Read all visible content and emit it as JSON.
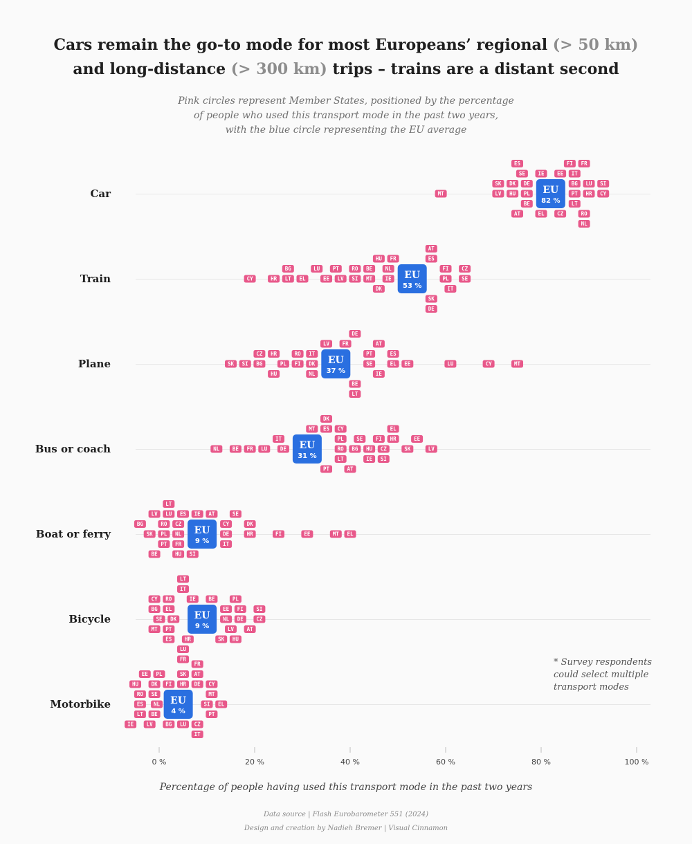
{
  "title": {
    "line1_pre": "Cars remain the go-to mode for most Europeans’ regional",
    "line1_hl": "(> 50 km)",
    "line2_pre": "and long-distance",
    "line2_hl": "(> 300 km)",
    "line2_post": "trips – trains are a distant second"
  },
  "subtitle": {
    "line1": "Pink circles represent Member States, positioned by the percentage",
    "line2": "of people who used this transport mode in the past two years,",
    "line3": "with the blue circle representing the EU average"
  },
  "footnote": {
    "line1": "* Survey respondents",
    "line2": "could select multiple",
    "line3": "transport modes"
  },
  "source": "Data source | Flash Eurobarometer 551 (2024)",
  "credit": "Design and creation by Nadieh Bremer | Visual Cinnamon",
  "colors": {
    "member_state": "#e8588a",
    "eu": "#2a6fe0",
    "gridline": "#e6e6e6"
  },
  "chart_data": {
    "type": "beeswarm",
    "xlabel": "Percentage of people having used this transport mode in the past two years",
    "xlim": [
      0,
      100
    ],
    "ticks": [
      0,
      20,
      40,
      60,
      80,
      100
    ],
    "tick_labels": [
      "0 %",
      "20 %",
      "40 %",
      "60 %",
      "80 %",
      "100 %"
    ],
    "eu_label": "EU",
    "rows": [
      {
        "mode": "Car",
        "eu": 82,
        "eu_label": "82 %",
        "members": [
          [
            "MT",
            59
          ],
          [
            "LV",
            71
          ],
          [
            "SK",
            71
          ],
          [
            "HU",
            74
          ],
          [
            "DK",
            74
          ],
          [
            "AT",
            75
          ],
          [
            "ES",
            75
          ],
          [
            "SE",
            76
          ],
          [
            "PL",
            77
          ],
          [
            "DE",
            77
          ],
          [
            "BE",
            77
          ],
          [
            "IE",
            80
          ],
          [
            "EL",
            80
          ],
          [
            "EE",
            84
          ],
          [
            "CZ",
            84
          ],
          [
            "FI",
            86
          ],
          [
            "PT",
            87
          ],
          [
            "BG",
            87
          ],
          [
            "LT",
            87
          ],
          [
            "IT",
            87
          ],
          [
            "RO",
            89
          ],
          [
            "FR",
            89
          ],
          [
            "NL",
            89
          ],
          [
            "HR",
            90
          ],
          [
            "LU",
            90
          ],
          [
            "CY",
            93
          ],
          [
            "SI",
            93
          ]
        ]
      },
      {
        "mode": "Train",
        "eu": 53,
        "eu_label": "53 %",
        "members": [
          [
            "CY",
            19
          ],
          [
            "HR",
            24
          ],
          [
            "LT",
            27
          ],
          [
            "BG",
            27
          ],
          [
            "EL",
            30
          ],
          [
            "LU",
            33
          ],
          [
            "EE",
            35
          ],
          [
            "LV",
            38
          ],
          [
            "PT",
            37
          ],
          [
            "SI",
            41
          ],
          [
            "RO",
            41
          ],
          [
            "MT",
            44
          ],
          [
            "BE",
            44
          ],
          [
            "DK",
            46
          ],
          [
            "HU",
            46
          ],
          [
            "IE",
            48
          ],
          [
            "NL",
            48
          ],
          [
            "FR",
            49
          ],
          [
            "ES",
            57
          ],
          [
            "SK",
            57
          ],
          [
            "AT",
            57
          ],
          [
            "DE",
            57
          ],
          [
            "PL",
            60
          ],
          [
            "FI",
            60
          ],
          [
            "IT",
            61
          ],
          [
            "SE",
            64
          ],
          [
            "CZ",
            64
          ]
        ]
      },
      {
        "mode": "Plane",
        "eu": 37,
        "eu_label": "37 %",
        "members": [
          [
            "SK",
            15
          ],
          [
            "SI",
            18
          ],
          [
            "BG",
            21
          ],
          [
            "CZ",
            21
          ],
          [
            "HR",
            24
          ],
          [
            "HU",
            24
          ],
          [
            "PL",
            26
          ],
          [
            "FI",
            29
          ],
          [
            "RO",
            29
          ],
          [
            "DK",
            32
          ],
          [
            "IT",
            32
          ],
          [
            "NL",
            32
          ],
          [
            "LV",
            35
          ],
          [
            "FR",
            39
          ],
          [
            "BE",
            41
          ],
          [
            "DE",
            41
          ],
          [
            "LT",
            41
          ],
          [
            "SE",
            44
          ],
          [
            "PT",
            44
          ],
          [
            "IE",
            46
          ],
          [
            "AT",
            46
          ],
          [
            "EL",
            49
          ],
          [
            "ES",
            49
          ],
          [
            "EE",
            52
          ],
          [
            "LU",
            61
          ],
          [
            "CY",
            69
          ],
          [
            "MT",
            75
          ]
        ]
      },
      {
        "mode": "Bus or coach",
        "eu": 31,
        "eu_label": "31 %",
        "members": [
          [
            "NL",
            12
          ],
          [
            "BE",
            16
          ],
          [
            "FR",
            19
          ],
          [
            "LU",
            22
          ],
          [
            "IT",
            25
          ],
          [
            "DE",
            26
          ],
          [
            "MT",
            32
          ],
          [
            "ES",
            35
          ],
          [
            "PT",
            35
          ],
          [
            "DK",
            35
          ],
          [
            "RO",
            38
          ],
          [
            "PL",
            38
          ],
          [
            "LT",
            38
          ],
          [
            "CY",
            38
          ],
          [
            "AT",
            40
          ],
          [
            "BG",
            41
          ],
          [
            "SE",
            42
          ],
          [
            "HU",
            44
          ],
          [
            "IE",
            44
          ],
          [
            "CZ",
            47
          ],
          [
            "FI",
            46
          ],
          [
            "SI",
            47
          ],
          [
            "HR",
            49
          ],
          [
            "EL",
            49
          ],
          [
            "SK",
            52
          ],
          [
            "EE",
            54
          ],
          [
            "LV",
            57
          ]
        ]
      },
      {
        "mode": "Boat or ferry",
        "eu": 9,
        "eu_label": "9 %",
        "members": [
          [
            "BG",
            -4
          ],
          [
            "LV",
            -1
          ],
          [
            "BE",
            -1
          ],
          [
            "SK",
            -2
          ],
          [
            "PL",
            1
          ],
          [
            "LU",
            2
          ],
          [
            "LT",
            2
          ],
          [
            "RO",
            1
          ],
          [
            "PT",
            1
          ],
          [
            "NL",
            4
          ],
          [
            "CZ",
            4
          ],
          [
            "ES",
            5
          ],
          [
            "FR",
            4
          ],
          [
            "HU",
            4
          ],
          [
            "IE",
            8
          ],
          [
            "SI",
            7
          ],
          [
            "AT",
            11
          ],
          [
            "DE",
            14
          ],
          [
            "CY",
            14
          ],
          [
            "IT",
            14
          ],
          [
            "SE",
            16
          ],
          [
            "HR",
            19
          ],
          [
            "DK",
            19
          ],
          [
            "FI",
            25
          ],
          [
            "EE",
            31
          ],
          [
            "MT",
            37
          ],
          [
            "EL",
            40
          ]
        ]
      },
      {
        "mode": "Bicycle",
        "eu": 9,
        "eu_label": "9 %",
        "members": [
          [
            "SE",
            0
          ],
          [
            "DK",
            3
          ],
          [
            "BG",
            -1
          ],
          [
            "EL",
            2
          ],
          [
            "MT",
            -1
          ],
          [
            "PT",
            2
          ],
          [
            "RO",
            2
          ],
          [
            "ES",
            2
          ],
          [
            "CY",
            -1
          ],
          [
            "HR",
            6
          ],
          [
            "IT",
            5
          ],
          [
            "LU",
            5
          ],
          [
            "LT",
            5
          ],
          [
            "FR",
            5
          ],
          [
            "IE",
            7
          ],
          [
            "SK",
            13
          ],
          [
            "PL",
            16
          ],
          [
            "NL",
            14
          ],
          [
            "DE",
            17
          ],
          [
            "HU",
            16
          ],
          [
            "EE",
            14
          ],
          [
            "BE",
            11
          ],
          [
            "LV",
            15
          ],
          [
            "AT",
            19
          ],
          [
            "FI",
            17
          ],
          [
            "CZ",
            21
          ],
          [
            "SI",
            21
          ]
        ]
      },
      {
        "mode": "Motorbike",
        "eu": 4,
        "eu_label": "4 %",
        "members": [
          [
            "EE",
            -3
          ],
          [
            "PL",
            0
          ],
          [
            "ES",
            -4
          ],
          [
            "NL",
            -0.5
          ],
          [
            "SE",
            -1
          ],
          [
            "FI",
            2
          ],
          [
            "IE",
            -6
          ],
          [
            "RO",
            -4
          ],
          [
            "LT",
            -4
          ],
          [
            "BE",
            -1
          ],
          [
            "HU",
            -5
          ],
          [
            "DK",
            -1
          ],
          [
            "LV",
            -2
          ],
          [
            "BG",
            2
          ],
          [
            "HR",
            5
          ],
          [
            "LU",
            5
          ],
          [
            "SK",
            5
          ],
          [
            "DE",
            8
          ],
          [
            "MT",
            11
          ],
          [
            "CZ",
            8
          ],
          [
            "SI",
            10
          ],
          [
            "AT",
            8
          ],
          [
            "IT",
            8
          ],
          [
            "FR",
            8
          ],
          [
            "EL",
            13
          ],
          [
            "PT",
            11
          ],
          [
            "CY",
            11
          ]
        ]
      }
    ]
  }
}
